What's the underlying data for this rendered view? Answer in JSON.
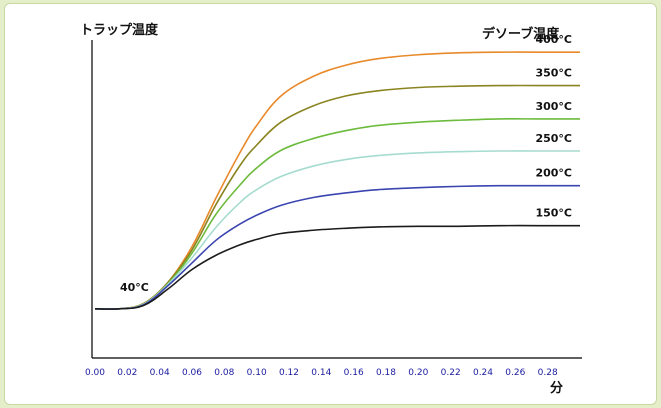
{
  "chart_data": {
    "type": "line",
    "ylabel_left": "トラップ温度",
    "ylabel_right": "デソーブ温度",
    "xlabel": "分",
    "start_label": "40°C",
    "x_ticks": [
      "0.00",
      "0.02",
      "0.04",
      "0.06",
      "0.08",
      "0.10",
      "0.12",
      "0.14",
      "0.16",
      "0.18",
      "0.20",
      "0.22",
      "0.24",
      "0.26",
      "0.28"
    ],
    "xlim": [
      0,
      0.3
    ],
    "ylim": [
      0,
      420
    ],
    "grid": false,
    "colors": {
      "axis_tick_labels": "#1a1aa0",
      "axes": "#000000"
    },
    "x": [
      0.0,
      0.015,
      0.03,
      0.045,
      0.06,
      0.075,
      0.09,
      0.1,
      0.115,
      0.135,
      0.155,
      0.175,
      0.2,
      0.225,
      0.25,
      0.275,
      0.3
    ],
    "series": [
      {
        "name": "400°C",
        "color": "#e8892a",
        "values": [
          40,
          40,
          48,
          80,
          135,
          210,
          280,
          320,
          365,
          395,
          412,
          422,
          428,
          431,
          432,
          432,
          432
        ]
      },
      {
        "name": "350°C",
        "color": "#8a8420",
        "values": [
          40,
          40,
          48,
          80,
          130,
          200,
          260,
          290,
          325,
          350,
          365,
          373,
          378,
          380,
          381,
          381,
          381
        ]
      },
      {
        "name": "300°C",
        "color": "#6cbb3c",
        "values": [
          40,
          40,
          47,
          78,
          125,
          185,
          230,
          255,
          282,
          300,
          312,
          320,
          325,
          328,
          330,
          330,
          330
        ]
      },
      {
        "name": "250°C",
        "color": "#a6dccf",
        "values": [
          40,
          40,
          47,
          77,
          118,
          165,
          203,
          222,
          242,
          258,
          268,
          274,
          278,
          280,
          281,
          281,
          281
        ]
      },
      {
        "name": "200°C",
        "color": "#3b45b0",
        "values": [
          40,
          40,
          46,
          75,
          110,
          145,
          170,
          183,
          198,
          210,
          217,
          222,
          225,
          227,
          228,
          228,
          228
        ]
      },
      {
        "name": "150°C",
        "color": "#1c1c1c",
        "values": [
          40,
          40,
          45,
          70,
          100,
          122,
          138,
          146,
          155,
          160,
          163,
          165,
          166,
          166,
          167,
          167,
          167
        ]
      }
    ]
  }
}
